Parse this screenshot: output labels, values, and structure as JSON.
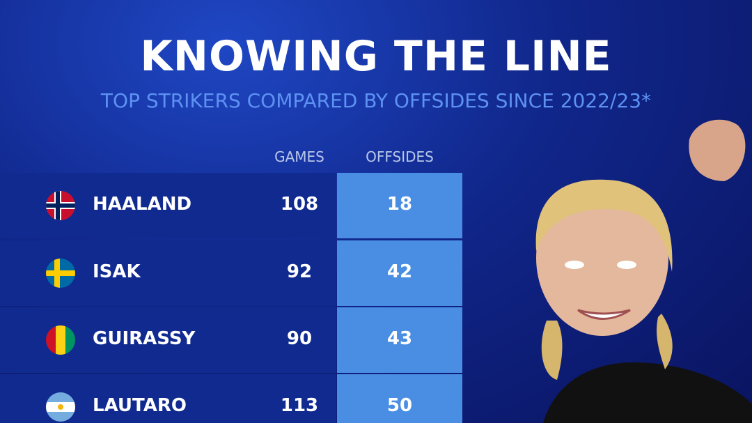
{
  "title": "KNOWING THE LINE",
  "subtitle": "TOP STRIKERS COMPARED BY OFFSIDES SINCE 2022/23*",
  "table": {
    "columns": [
      "GAMES",
      "OFFSIDES"
    ],
    "rows": [
      {
        "name": "HAALAND",
        "games": 108,
        "offsides": 18
      },
      {
        "name": "ISAK",
        "games": 92,
        "offsides": 42
      },
      {
        "name": "GUIRASSY",
        "games": 90,
        "offsides": 43
      },
      {
        "name": "LAUTARO",
        "games": 113,
        "offsides": 50
      }
    ]
  }
}
